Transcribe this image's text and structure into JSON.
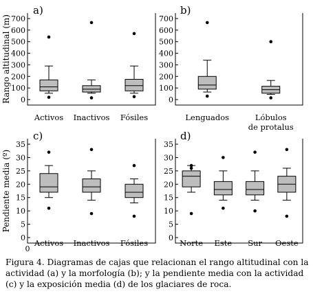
{
  "figure": {
    "caption_lines": [
      "Figura 4. Diagramas de cajas que relacionan el rango altitudinal con la",
      "actividad (a) y la morfología (b); y la pendiente media con la actividad",
      "(c) y la exposición media (d) de los glaciares de roca."
    ]
  },
  "chart_data": [
    {
      "type": "box",
      "panel_label": "a)",
      "ylabel": "Rango altitudinal (m)",
      "ylim": [
        0,
        700
      ],
      "yticks": [
        "0",
        "100",
        "200",
        "300",
        "400",
        "500",
        "600",
        "700"
      ],
      "categories": [
        "Activos",
        "Inactivos",
        "Fósiles"
      ],
      "boxes": [
        {
          "min": 55,
          "q1": 75,
          "median": 110,
          "q3": 170,
          "max": 290,
          "outliers": [
            20,
            540
          ]
        },
        {
          "min": 55,
          "q1": 65,
          "median": 90,
          "q3": 120,
          "max": 170,
          "outliers": [
            15,
            665
          ]
        },
        {
          "min": 55,
          "q1": 75,
          "median": 120,
          "q3": 175,
          "max": 290,
          "outliers": [
            25,
            570
          ]
        }
      ]
    },
    {
      "type": "box",
      "panel_label": "b)",
      "ylabel": "",
      "ylim": [
        0,
        700
      ],
      "yticks": [
        "0",
        "100",
        "200",
        "300",
        "400",
        "500",
        "600",
        "700"
      ],
      "categories": [
        "Lenguados",
        "Lóbulos\nde protalus"
      ],
      "boxes": [
        {
          "min": 65,
          "q1": 90,
          "median": 125,
          "q3": 200,
          "max": 340,
          "outliers": [
            30,
            665
          ]
        },
        {
          "min": 45,
          "q1": 55,
          "median": 85,
          "q3": 115,
          "max": 165,
          "outliers": [
            15,
            500
          ]
        }
      ]
    },
    {
      "type": "box",
      "panel_label": "c)",
      "ylabel": "Pendiente media (º)",
      "ylim": [
        0,
        35
      ],
      "yticks": [
        "0",
        "5",
        "10",
        "15",
        "20",
        "25",
        "30",
        "35"
      ],
      "origin_label": "0",
      "categories": [
        "Activos",
        "Inactivos",
        "Fósiles"
      ],
      "boxes": [
        {
          "min": 15,
          "q1": 17,
          "median": 19,
          "q3": 24,
          "max": 27,
          "outliers": [
            11,
            32
          ]
        },
        {
          "min": 14,
          "q1": 17,
          "median": 19,
          "q3": 22,
          "max": 25,
          "outliers": [
            9,
            33
          ]
        },
        {
          "min": 13,
          "q1": 15,
          "median": 17,
          "q3": 20,
          "max": 22,
          "outliers": [
            8,
            27
          ]
        }
      ]
    },
    {
      "type": "box",
      "panel_label": "d)",
      "ylabel": "",
      "ylim": [
        0,
        35
      ],
      "yticks": [
        "0",
        "5",
        "10",
        "15",
        "20",
        "25",
        "30",
        "35"
      ],
      "categories": [
        "Norte",
        "Este",
        "Sur",
        "Oeste"
      ],
      "boxes": [
        {
          "min": 17,
          "q1": 19,
          "median": 23,
          "q3": 25,
          "max": 27,
          "outliers": [
            9,
            26,
            27
          ]
        },
        {
          "min": 14,
          "q1": 16,
          "median": 18,
          "q3": 21,
          "max": 25,
          "outliers": [
            11,
            30
          ]
        },
        {
          "min": 14,
          "q1": 16,
          "median": 18,
          "q3": 21,
          "max": 25,
          "outliers": [
            10,
            32
          ]
        },
        {
          "min": 14,
          "q1": 17,
          "median": 20,
          "q3": 23,
          "max": 26,
          "outliers": [
            8,
            33
          ]
        }
      ]
    }
  ]
}
